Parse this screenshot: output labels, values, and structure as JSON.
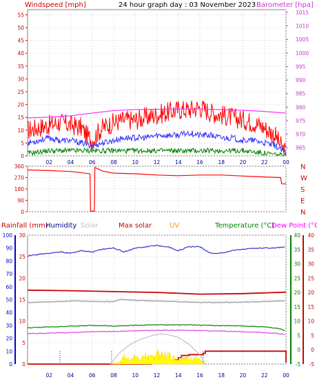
{
  "chart_data": [
    {
      "type": "line",
      "title": "24 hour graph day : 03 November 2023",
      "left_axis_label": "Windspeed [mph]",
      "right_axis_label": "Barometer [hpa]",
      "left_ticks": [
        "0",
        "5",
        "10",
        "15",
        "20",
        "25",
        "30",
        "35",
        "40",
        "45",
        "50",
        "55"
      ],
      "right_ticks": [
        "965",
        "970",
        "975",
        "980",
        "985",
        "990",
        "995",
        "1000",
        "1005",
        "1010",
        "1015"
      ],
      "ylim_left": [
        0,
        57
      ],
      "ylim_right": [
        962,
        1016
      ],
      "x_ticks": [
        "02",
        "04",
        "06",
        "08",
        "10",
        "12",
        "14",
        "16",
        "18",
        "20",
        "22",
        "00"
      ],
      "series": [
        {
          "key": "gust",
          "color": "#ff0000",
          "x": [
            0,
            1,
            2,
            3,
            4,
            5,
            5.5,
            6,
            6.5,
            7,
            8,
            9,
            10,
            11,
            12,
            13,
            14,
            15,
            16,
            17,
            18,
            19,
            20,
            21,
            22,
            23,
            23.5,
            24
          ],
          "values": [
            10,
            11,
            12,
            13,
            12,
            11,
            8,
            6,
            9,
            11,
            13,
            14,
            14,
            15,
            16,
            17,
            18,
            18,
            19,
            17,
            16,
            15,
            14,
            13,
            11,
            8,
            4,
            1
          ]
        },
        {
          "key": "avg",
          "color": "#3333ff",
          "x": [
            0,
            1,
            2,
            3,
            4,
            5,
            6,
            7,
            8,
            9,
            10,
            11,
            12,
            13,
            14,
            15,
            16,
            17,
            18,
            19,
            20,
            21,
            22,
            23,
            24
          ],
          "values": [
            5,
            6,
            7,
            6,
            6,
            5,
            4,
            5,
            6,
            7,
            7,
            7,
            8,
            8,
            8,
            9,
            8,
            8,
            7,
            7,
            6,
            6,
            5,
            4,
            1
          ]
        },
        {
          "key": "low",
          "color": "#008000",
          "x": [
            0,
            2,
            4,
            6,
            8,
            10,
            12,
            14,
            16,
            18,
            20,
            22,
            24
          ],
          "values": [
            1,
            2,
            2,
            2,
            2,
            2,
            2,
            2,
            2,
            2,
            2,
            1,
            0
          ]
        },
        {
          "key": "barometer",
          "color": "#ff33ff",
          "axis": "right",
          "x": [
            0,
            2,
            4,
            6,
            8,
            10,
            12,
            14,
            16,
            18,
            20,
            22,
            24
          ],
          "values": [
            976,
            976.3,
            976.8,
            977.8,
            978.7,
            979.1,
            979.2,
            979.3,
            979.3,
            979.1,
            978.8,
            978.4,
            977.8
          ]
        }
      ]
    },
    {
      "type": "line",
      "right_labels": [
        "N",
        "W",
        "S",
        "E",
        "N"
      ],
      "left_ticks": [
        "0",
        "90",
        "180",
        "270",
        "360"
      ],
      "ylim": [
        0,
        360
      ],
      "x_ticks": [
        "02",
        "04",
        "06",
        "08",
        "10",
        "12",
        "14",
        "16",
        "18",
        "20",
        "22",
        "00"
      ],
      "series": [
        {
          "key": "direction",
          "color": "#ff0000",
          "x": [
            0,
            2,
            4,
            5.8,
            5.85,
            6.2,
            6.25,
            7,
            8,
            10,
            12,
            14,
            16,
            18,
            20,
            22,
            23.5,
            23.6,
            24
          ],
          "values": [
            330,
            325,
            318,
            300,
            5,
            5,
            350,
            320,
            305,
            300,
            290,
            285,
            290,
            290,
            282,
            275,
            270,
            220,
            220
          ]
        }
      ]
    },
    {
      "type": "line",
      "legend": [
        "Rainfall (mm)",
        "Humidity",
        "Solar",
        "Max solar",
        "UV",
        "Temperature (°C)",
        "Dew Point (°C)"
      ],
      "legend_colors": [
        "#cc0000",
        "#000088",
        "#c0c0c0",
        "#cc0000",
        "#ff9900",
        "#008000",
        "#ff00ff"
      ],
      "axis_humidity_ticks": [
        "0",
        "10",
        "20",
        "30",
        "40",
        "50",
        "60",
        "70",
        "80",
        "90",
        "100"
      ],
      "axis_rain_ticks": [
        "0",
        "5",
        "10",
        "15",
        "20",
        "25",
        "30"
      ],
      "axis_temp_ticks": [
        "-5",
        "0",
        "5",
        "10",
        "15",
        "20",
        "25",
        "30",
        "35",
        "40"
      ],
      "ylim_rain": [
        0,
        30
      ],
      "ylim_temp": [
        -5,
        40
      ],
      "x_ticks": [
        "02",
        "04",
        "06",
        "08",
        "10",
        "12",
        "14",
        "16",
        "18",
        "20",
        "22",
        "00"
      ],
      "series": [
        {
          "key": "humidity",
          "color": "#3333cc",
          "axis": "humidity",
          "x": [
            0,
            1,
            2,
            3,
            4,
            5,
            6,
            7,
            8,
            9,
            10,
            11,
            12,
            13,
            14,
            15,
            16,
            17,
            18,
            19,
            20,
            21,
            22,
            23,
            24
          ],
          "values": [
            84,
            85,
            86,
            87,
            86,
            88,
            87,
            89,
            90,
            87,
            90,
            91,
            92,
            91,
            88,
            91,
            91,
            86,
            86,
            88,
            89,
            90,
            90,
            90,
            91
          ]
        },
        {
          "key": "max_solar",
          "color": "#cc0000",
          "axis": "temp",
          "x": [
            0,
            4,
            8,
            12,
            16,
            20,
            24
          ],
          "values": [
            20.8,
            20.6,
            20.3,
            20.0,
            19.4,
            19.6,
            20.1
          ]
        },
        {
          "key": "solar_line",
          "color": "#b0b0b0",
          "axis": "temp",
          "x": [
            0,
            2,
            4,
            6,
            8,
            8.5,
            10,
            12,
            14,
            16,
            18,
            20,
            22,
            23,
            24
          ],
          "values": [
            16.5,
            16.7,
            17,
            16.9,
            16.8,
            17.5,
            17.3,
            17.0,
            16.8,
            16.5,
            16.5,
            16.6,
            16.8,
            17.0,
            17.0
          ]
        },
        {
          "key": "temperature",
          "color": "#008000",
          "axis": "temp",
          "x": [
            0,
            2,
            4,
            6,
            8,
            10,
            12,
            14,
            16,
            18,
            20,
            22,
            23.5,
            24
          ],
          "values": [
            7.6,
            8,
            8.2,
            8.5,
            8.3,
            8.5,
            8.7,
            8.7,
            8.6,
            8.4,
            8.3,
            8.0,
            7.3,
            6.5
          ]
        },
        {
          "key": "dew_point",
          "color": "#e040e0",
          "axis": "temp",
          "x": [
            0,
            2,
            4,
            6,
            8,
            10,
            12,
            14,
            16,
            18,
            20,
            22,
            24
          ],
          "values": [
            5.6,
            5.8,
            6.0,
            6.3,
            6.4,
            6.6,
            6.8,
            6.8,
            6.7,
            6.5,
            6.3,
            6.0,
            5.4
          ]
        },
        {
          "key": "rain",
          "color": "#cc0000",
          "axis": "rain",
          "x": [
            0,
            11.2,
            11.5,
            12.5,
            13,
            13.5,
            14,
            14.3,
            15,
            16.3,
            16.5,
            23.5,
            24
          ],
          "values": [
            0,
            0,
            0.3,
            0.3,
            0.8,
            1.0,
            1.5,
            2.0,
            2.2,
            2.5,
            3.0,
            3.0,
            0.3
          ]
        },
        {
          "key": "solar_radiation",
          "color": "#c0c0c0",
          "axis": "rain",
          "x": [
            7.7,
            8.5,
            9.5,
            10.5,
            11.5,
            12.3,
            13,
            14,
            15,
            16,
            16.5
          ],
          "values": [
            0,
            2.5,
            4.5,
            5.8,
            6.6,
            7.0,
            6.9,
            6.2,
            4.6,
            2.2,
            0
          ]
        },
        {
          "key": "uv_area",
          "color": "#ffff00",
          "axis": "rain",
          "x": [
            7.7,
            8.5,
            9,
            9.5,
            10,
            10.5,
            11,
            11.5,
            12,
            12.5,
            13,
            13.5,
            14,
            14.5,
            15,
            15.5,
            16,
            16.5
          ],
          "values": [
            0,
            0.5,
            1.8,
            1.0,
            2.0,
            1.3,
            2.4,
            1.6,
            3.0,
            2.2,
            2.6,
            1.8,
            1.4,
            2.0,
            1.2,
            1.8,
            1.0,
            0
          ]
        }
      ]
    }
  ]
}
